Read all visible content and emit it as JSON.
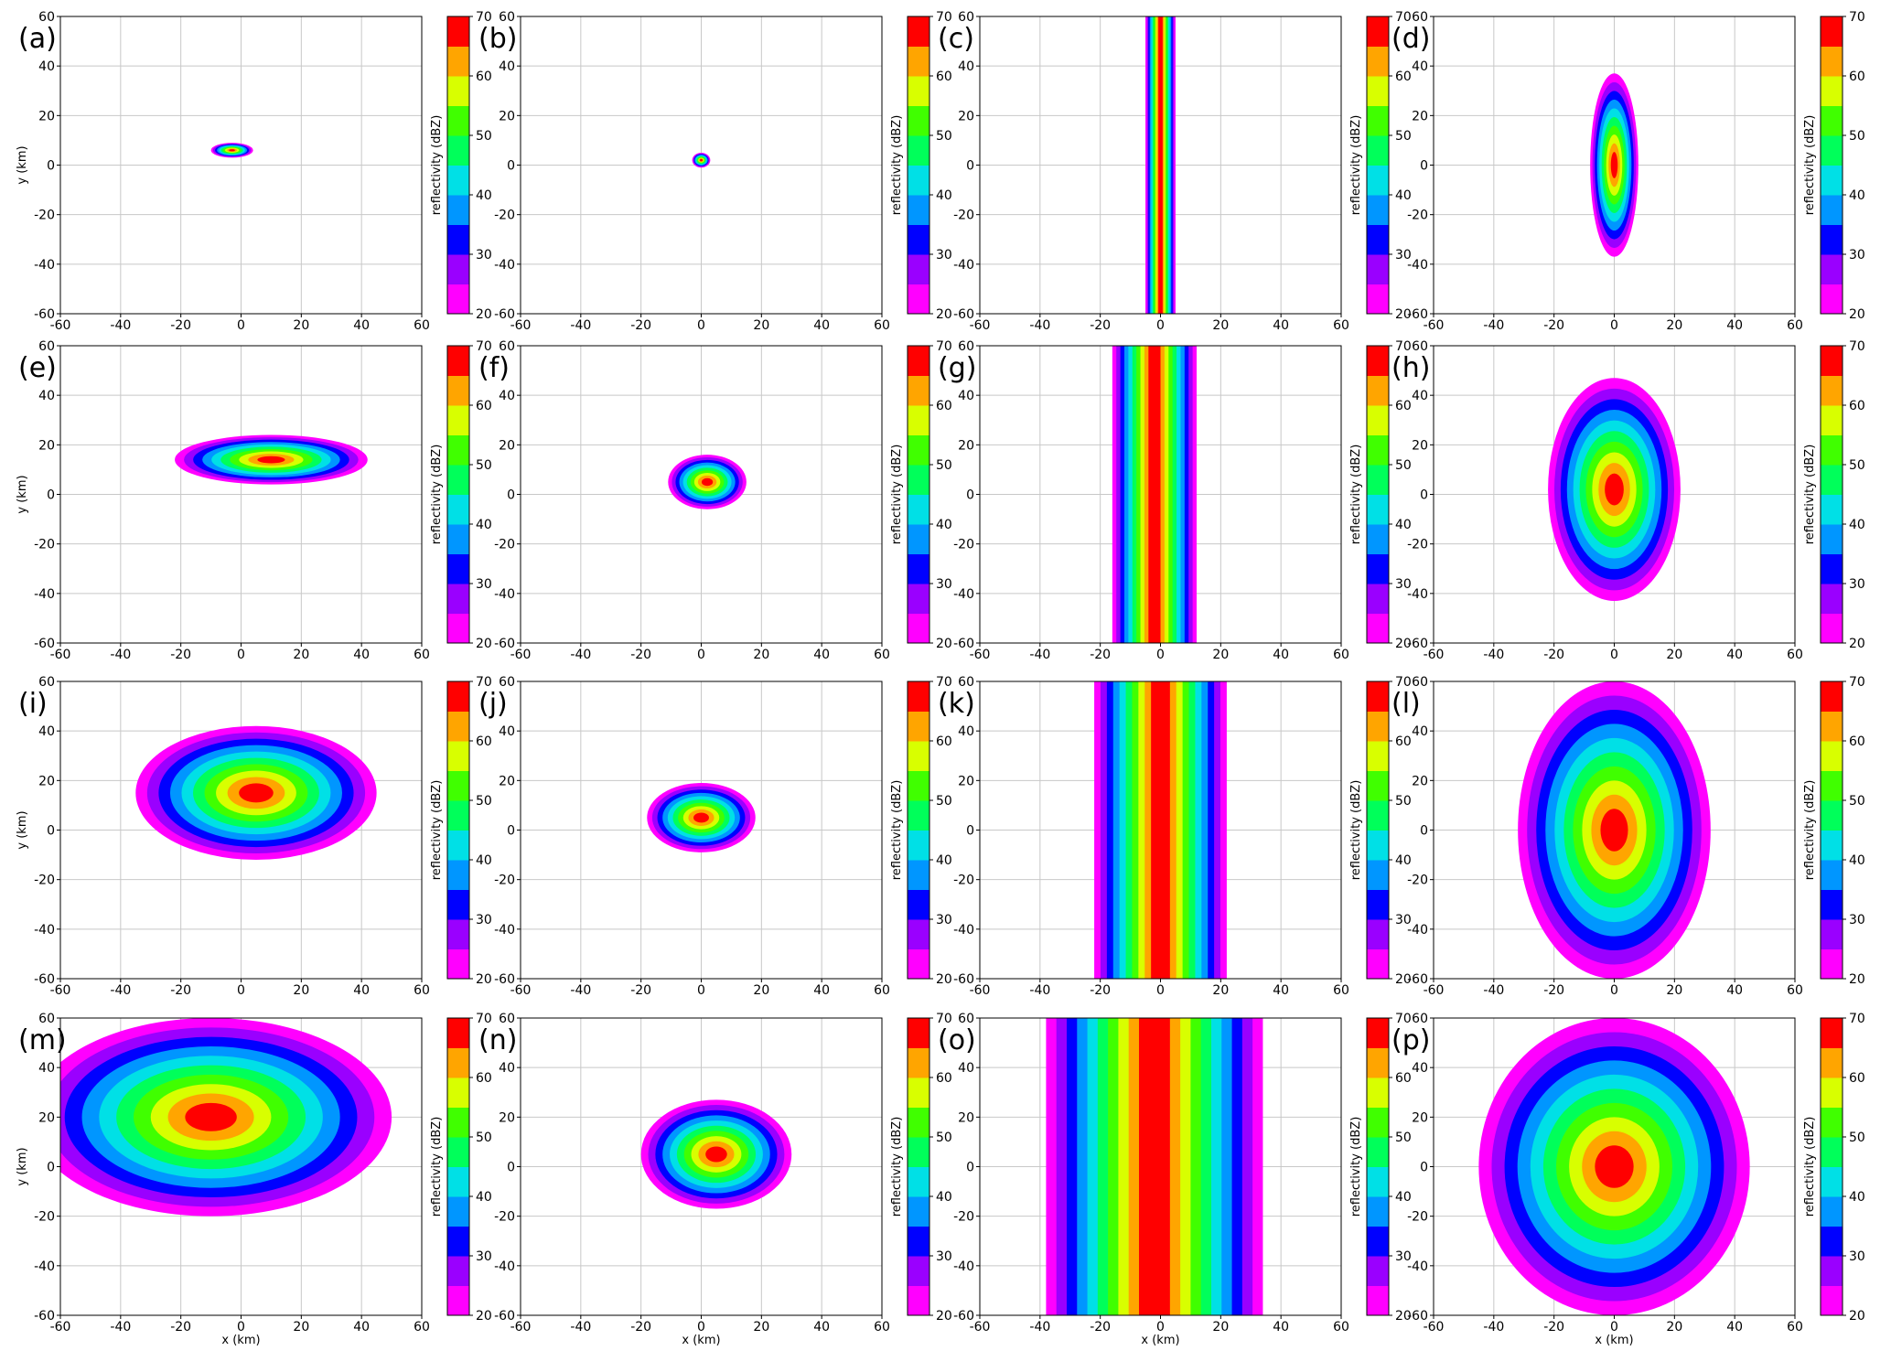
{
  "chart_data": {
    "type": "heatmap",
    "layout": {
      "rows": 4,
      "cols": 4
    },
    "xlim": [
      -60,
      60
    ],
    "ylim": [
      -60,
      60
    ],
    "x_ticks": [
      -60,
      -40,
      -20,
      0,
      20,
      40,
      60
    ],
    "y_ticks": [
      -60,
      -40,
      -20,
      0,
      20,
      40,
      60
    ],
    "xlabel": "x (km)",
    "ylabel": "y (km)",
    "grid": true,
    "colorbar": {
      "label": "reflectivity (dBZ)",
      "range": [
        20,
        70
      ],
      "ticks": [
        20,
        30,
        40,
        50,
        60,
        70
      ],
      "levels": [
        20,
        25,
        30,
        35,
        40,
        45,
        50,
        55,
        60,
        65,
        70
      ],
      "colors": [
        "#ff00ff",
        "#9a00ff",
        "#0000ff",
        "#0096ff",
        "#00e0e6",
        "#00ff5a",
        "#40ff00",
        "#d8ff00",
        "#ffa500",
        "#ff0000"
      ]
    },
    "panels": [
      {
        "label": "(a)",
        "shape": "ellipse",
        "center": [
          -3,
          6
        ],
        "radius": [
          7,
          3
        ]
      },
      {
        "label": "(b)",
        "shape": "ellipse",
        "center": [
          0,
          2
        ],
        "radius": [
          3,
          3
        ]
      },
      {
        "label": "(c)",
        "shape": "band",
        "center": [
          0,
          0
        ],
        "radius": [
          5,
          62
        ]
      },
      {
        "label": "(d)",
        "shape": "ellipse",
        "center": [
          0,
          0
        ],
        "radius": [
          8,
          37
        ]
      },
      {
        "label": "(e)",
        "shape": "ellipse",
        "center": [
          10,
          14
        ],
        "radius": [
          32,
          10
        ]
      },
      {
        "label": "(f)",
        "shape": "ellipse",
        "center": [
          2,
          5
        ],
        "radius": [
          13,
          11
        ]
      },
      {
        "label": "(g)",
        "shape": "band",
        "center": [
          -2,
          0
        ],
        "radius": [
          14,
          62
        ]
      },
      {
        "label": "(h)",
        "shape": "ellipse",
        "center": [
          0,
          2
        ],
        "radius": [
          22,
          45
        ]
      },
      {
        "label": "(i)",
        "shape": "ellipse",
        "center": [
          5,
          15
        ],
        "radius": [
          40,
          27
        ]
      },
      {
        "label": "(j)",
        "shape": "ellipse",
        "center": [
          0,
          5
        ],
        "radius": [
          18,
          14
        ]
      },
      {
        "label": "(k)",
        "shape": "band",
        "center": [
          0,
          0
        ],
        "radius": [
          22,
          62
        ]
      },
      {
        "label": "(l)",
        "shape": "ellipse",
        "center": [
          0,
          0
        ],
        "radius": [
          32,
          60
        ]
      },
      {
        "label": "(m)",
        "shape": "ellipse",
        "center": [
          -10,
          20
        ],
        "radius": [
          60,
          40
        ]
      },
      {
        "label": "(n)",
        "shape": "ellipse",
        "center": [
          5,
          5
        ],
        "radius": [
          25,
          22
        ]
      },
      {
        "label": "(o)",
        "shape": "band",
        "center": [
          -2,
          0
        ],
        "radius": [
          36,
          62
        ]
      },
      {
        "label": "(p)",
        "shape": "ellipse",
        "center": [
          0,
          0
        ],
        "radius": [
          45,
          60
        ]
      }
    ]
  }
}
